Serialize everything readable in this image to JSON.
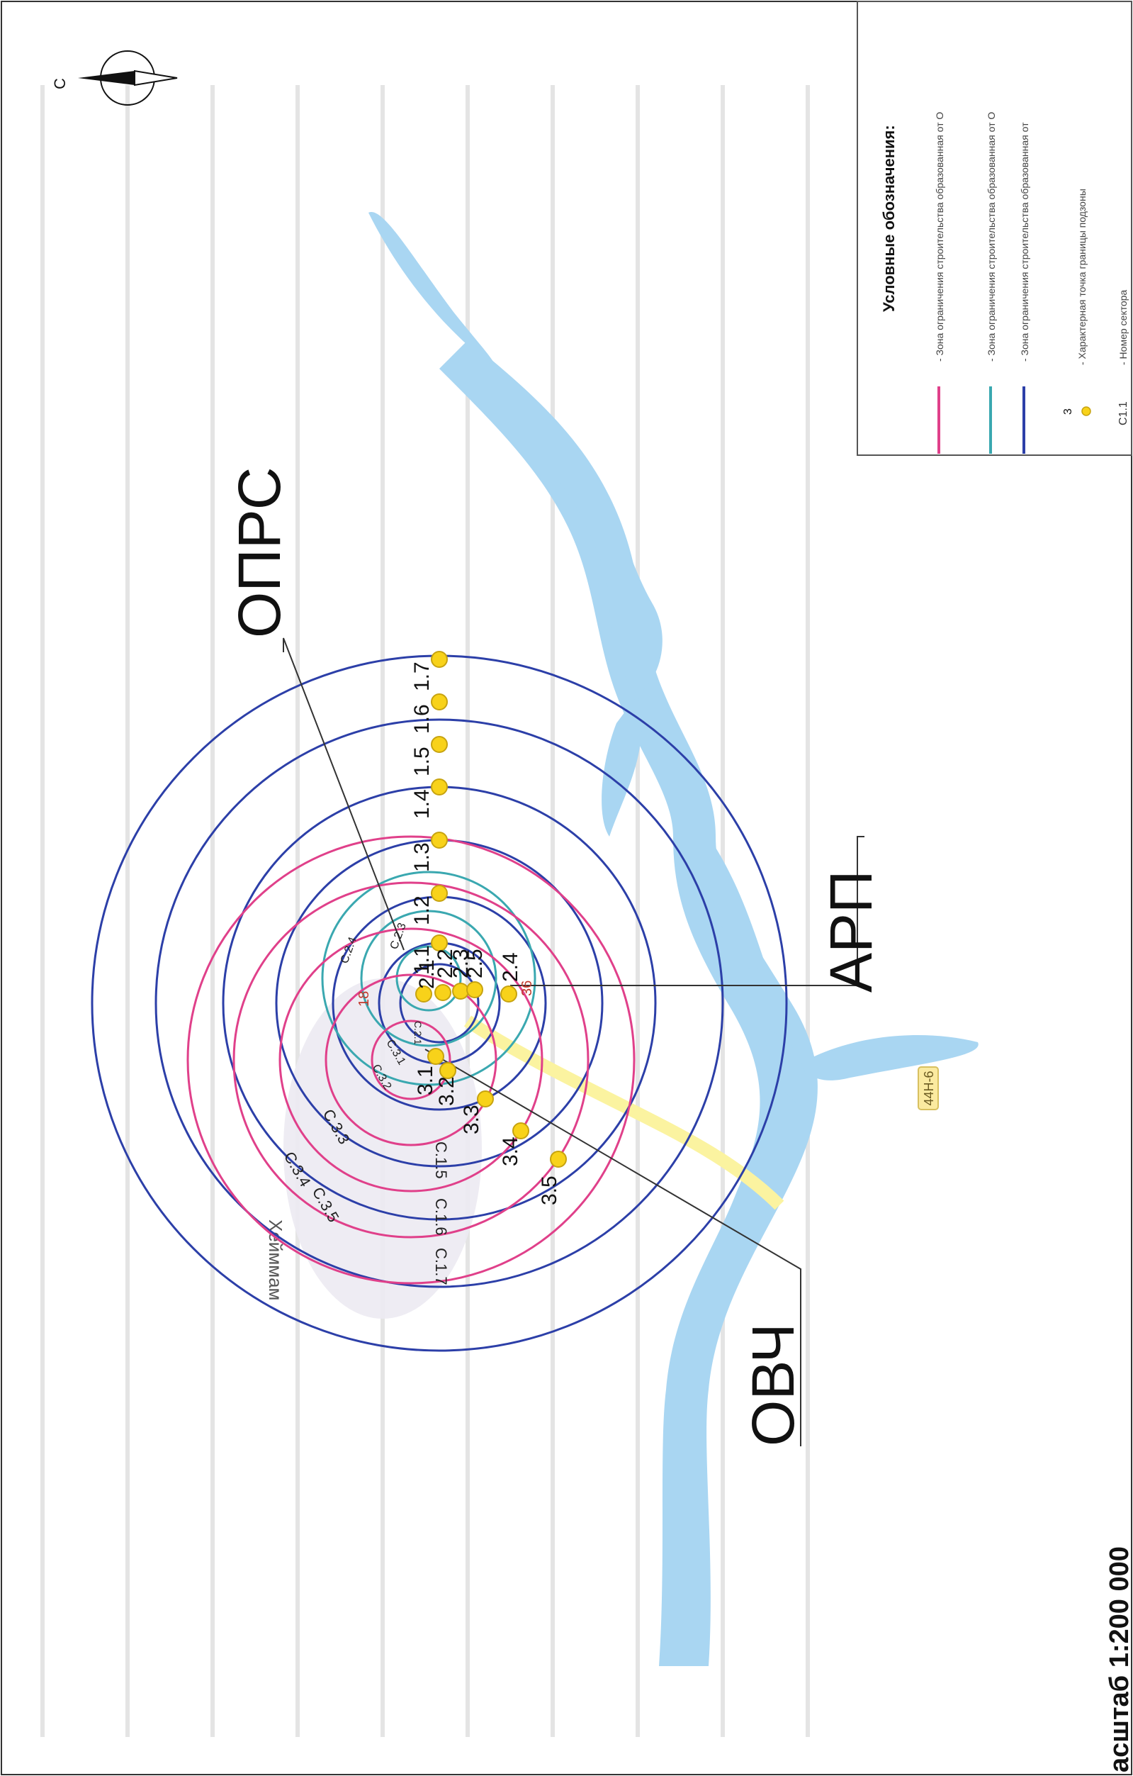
{
  "places": {
    "opr_label": "ОПРС",
    "arp_label": "АРП",
    "ovch_label": "ОВЧ",
    "town_name": "Хейммам",
    "road_label": "44Н-6"
  },
  "compass": {
    "north_label": "С"
  },
  "scale": {
    "text": "асштаб 1:200 000"
  },
  "legend": {
    "title": "Условные обозначения:",
    "items": [
      {
        "text": "- Зона ограничения строительства образованная от О",
        "color": "#e0408a"
      },
      {
        "text": "- Зона ограничения строительства образованная от О",
        "color": "#3aa8b0"
      },
      {
        "text": "- Зона ограничения строительства образованная от",
        "color": "#2c3fa8"
      }
    ],
    "point_number": "3",
    "point_text": "- Характерная точка границы подзоны",
    "sector_number": "С1.1",
    "sector_text": "- Номер сектора"
  },
  "colors": {
    "river": "#a9d6f2",
    "pink": "#e0408a",
    "teal": "#3aa8b0",
    "blue": "#2c3fa8",
    "point": "#f8d21a",
    "road": "#fbf3a0",
    "red_text": "#c0392b"
  },
  "points_series1": [
    "1.1",
    "1.2",
    "1.3",
    "1.4",
    "1.5",
    "1.6",
    "1.7"
  ],
  "points_series2": [
    "2.1",
    "2.2",
    "2.3",
    "2.4",
    "2.5"
  ],
  "points_series3": [
    "3.1",
    "3.2",
    "3.3",
    "3.4",
    "3.5"
  ],
  "sectors_series1": [
    "С.1.5",
    "С.1.6",
    "С.1.7"
  ],
  "sectors_series2": [
    "С.2.3",
    "С.2.4",
    "С.2.1"
  ],
  "sectors_series3": [
    "С.3.3",
    "С.3.4",
    "С.3.5",
    "С.3.2",
    "С.3.1"
  ],
  "red_labels": [
    "18",
    "36"
  ]
}
